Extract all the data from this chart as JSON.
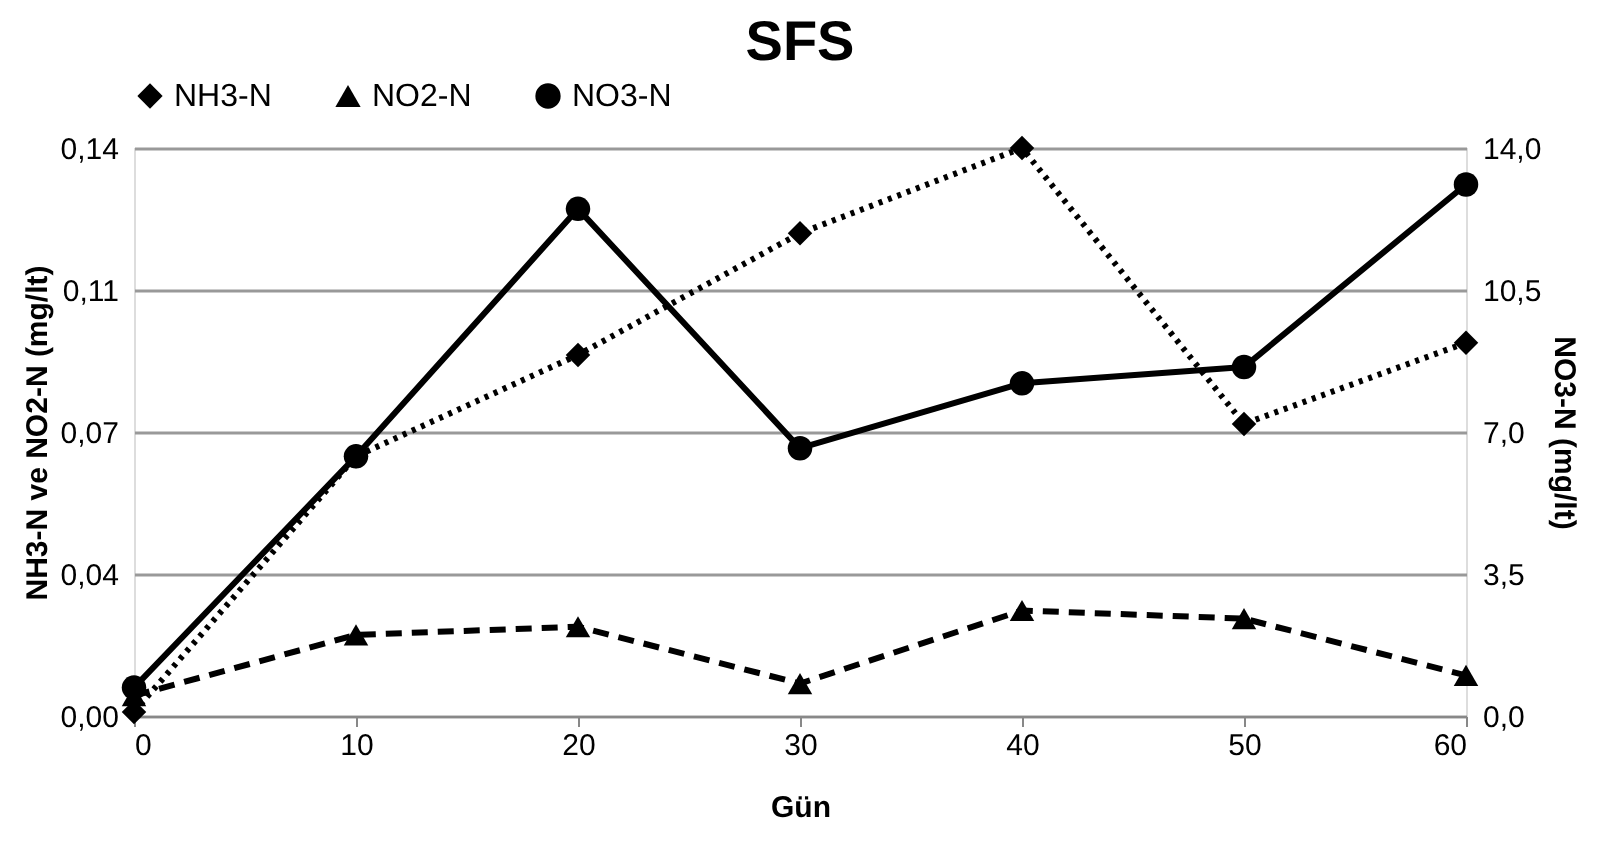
{
  "chart_data": {
    "type": "line",
    "title": "SFS",
    "xlabel": "Gün",
    "ylabel": "NH3-N ve NO2-N (mg/lt)",
    "y2label": "NO3-N (mg/lt)",
    "x": [
      0,
      10,
      20,
      30,
      40,
      50,
      60
    ],
    "series": [
      {
        "name": "NH3-N",
        "color": "#000000",
        "marker": "diamond",
        "line_style": "dotted",
        "values": [
          0.001,
          0.064,
          0.089,
          0.119,
          0.14,
          0.072,
          0.092
        ]
      },
      {
        "name": "NO2-N",
        "color": "#000000",
        "marker": "triangle",
        "line_style": "dashed",
        "values": [
          0.005,
          0.02,
          0.022,
          0.008,
          0.026,
          0.024,
          0.01
        ]
      },
      {
        "name": "NO3-N",
        "color": "#000000",
        "marker": "circle",
        "line_style": "solid",
        "axis": "y2",
        "values": [
          0.7,
          6.4,
          12.5,
          6.6,
          8.2,
          8.6,
          13.1
        ]
      }
    ],
    "xlim": [
      0,
      60
    ],
    "xticks": [
      0,
      10,
      20,
      30,
      40,
      50,
      60
    ],
    "ylim": [
      0,
      0.14
    ],
    "yticks": [
      {
        "value": 0,
        "label": "0,00"
      },
      {
        "value": 0.035,
        "label": "0,04"
      },
      {
        "value": 0.07,
        "label": "0,07"
      },
      {
        "value": 0.105,
        "label": "0,11"
      },
      {
        "value": 0.14,
        "label": "0,14"
      }
    ],
    "y2lim": [
      0,
      14
    ],
    "y2ticks": [
      {
        "value": 0,
        "label": "0,0"
      },
      {
        "value": 3.5,
        "label": "3,5"
      },
      {
        "value": 7,
        "label": "7,0"
      },
      {
        "value": 10.5,
        "label": "10,5"
      },
      {
        "value": 14,
        "label": "14,0"
      }
    ],
    "grid": "y",
    "legend": "top"
  }
}
